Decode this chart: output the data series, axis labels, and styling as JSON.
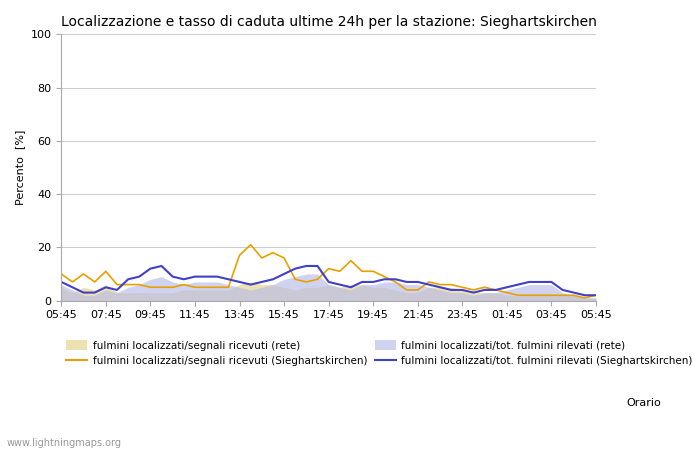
{
  "title": "Localizzazione e tasso di caduta ultime 24h per la stazione: Sieghartskirchen",
  "xlabel": "Orario",
  "ylabel": "Percento  [%]",
  "ylim": [
    0,
    100
  ],
  "yticks": [
    0,
    20,
    40,
    60,
    80,
    100
  ],
  "x_labels": [
    "05:45",
    "07:45",
    "09:45",
    "11:45",
    "13:45",
    "15:45",
    "17:45",
    "19:45",
    "21:45",
    "23:45",
    "01:45",
    "03:45",
    "05:45"
  ],
  "background_color": "#ffffff",
  "watermark": "www.lightningmaps.org",
  "orange_line": [
    10,
    7,
    10,
    7,
    11,
    6,
    6,
    6,
    5,
    5,
    5,
    6,
    5,
    5,
    5,
    5,
    17,
    21,
    16,
    18,
    16,
    8,
    7,
    8,
    12,
    11,
    15,
    11,
    11,
    9,
    7,
    4,
    4,
    7,
    6,
    6,
    5,
    4,
    5,
    4,
    3,
    2,
    2,
    2,
    2,
    2,
    2,
    1,
    2
  ],
  "blue_line": [
    7,
    5,
    3,
    3,
    5,
    4,
    8,
    9,
    12,
    13,
    9,
    8,
    9,
    9,
    9,
    8,
    7,
    6,
    7,
    8,
    10,
    12,
    13,
    13,
    7,
    6,
    5,
    7,
    7,
    8,
    8,
    7,
    7,
    6,
    5,
    4,
    4,
    3,
    4,
    4,
    5,
    6,
    7,
    7,
    7,
    4,
    3,
    2,
    2
  ],
  "orange_fill": [
    5,
    3,
    5,
    4,
    6,
    3,
    3,
    3,
    3,
    3,
    3,
    4,
    4,
    4,
    4,
    4,
    6,
    7,
    6,
    6,
    5,
    4,
    5,
    5,
    6,
    5,
    6,
    6,
    5,
    5,
    4,
    3,
    3,
    5,
    5,
    5,
    4,
    3,
    3,
    3,
    2,
    2,
    2,
    2,
    2,
    2,
    2,
    1,
    1
  ],
  "blue_fill": [
    6,
    4,
    2,
    2,
    4,
    3,
    5,
    6,
    8,
    9,
    7,
    6,
    7,
    7,
    7,
    6,
    5,
    4,
    5,
    6,
    8,
    9,
    10,
    10,
    6,
    5,
    4,
    6,
    6,
    7,
    7,
    6,
    6,
    5,
    4,
    3,
    3,
    2,
    3,
    3,
    4,
    5,
    6,
    6,
    6,
    3,
    2,
    1,
    1
  ],
  "orange_line_color": "#e8a000",
  "blue_line_color": "#4040cc",
  "orange_fill_color": "#e8d898",
  "blue_fill_color": "#b8bce8",
  "grid_color": "#cccccc",
  "title_fontsize": 10,
  "axis_fontsize": 8,
  "legend_fontsize": 7.5
}
